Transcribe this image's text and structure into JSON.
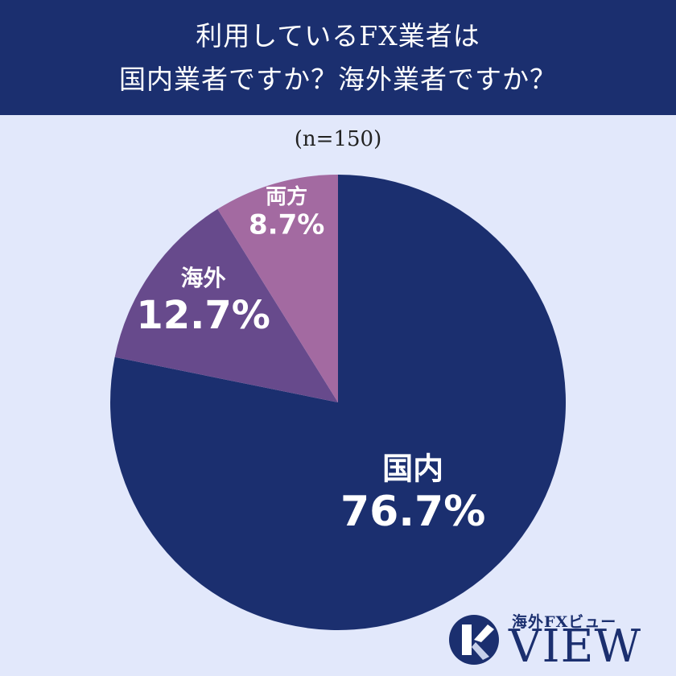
{
  "header": {
    "title_line1": "利用しているFX業者は",
    "title_line2": "国内業者ですか？海外業者ですか？"
  },
  "sample": "(n=150)",
  "chart_data": {
    "type": "pie",
    "start": "12 o'clock",
    "direction": "clockwise",
    "slices": [
      {
        "name": "国内",
        "value": 76.7,
        "label": "76.7%",
        "color": "#1b2f6f"
      },
      {
        "name": "海外",
        "value": 12.7,
        "label": "12.7%",
        "color": "#674a8c"
      },
      {
        "name": "両方",
        "value": 8.7,
        "label": "8.7%",
        "color": "#a36aa1"
      }
    ]
  },
  "logo": {
    "subtitle": "海外FXビュー",
    "name": "VIEW"
  },
  "colors": {
    "header_bg": "#1b2f6f",
    "page_bg": "#e2e8fb"
  }
}
